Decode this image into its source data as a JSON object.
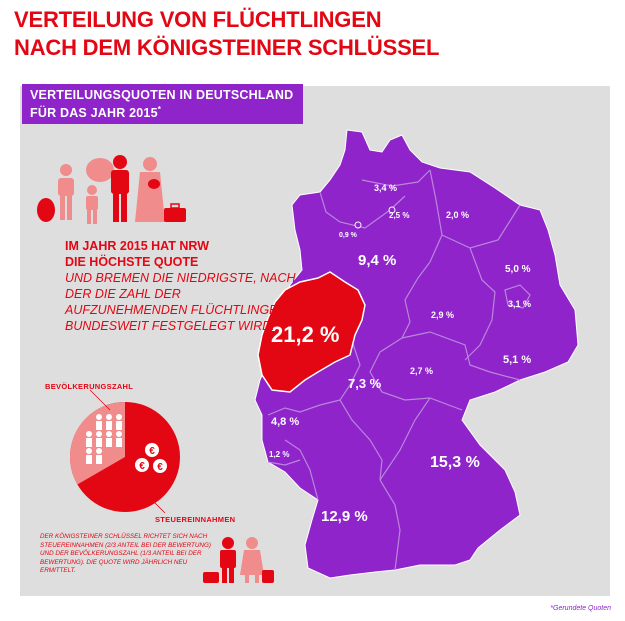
{
  "title": {
    "line1": "VERTEILUNG VON FLÜCHTLINGEN",
    "line2": "NACH DEM KÖNIGSTEINER SCHLÜSSEL"
  },
  "subtitle": {
    "line1": "VERTEILUNGSQUOTEN IN DEUTSCHLAND",
    "line2": "FÜR DAS JAHR 2015",
    "mark": "*"
  },
  "headline": {
    "bold1": "IM JAHR 2015 HAT NRW",
    "bold2": "DIE HÖCHSTE QUOTE",
    "rest": "UND BREMEN DIE NIEDRIGSTE, NACH DER DIE ZAHL DER AUFZUNEHMENDEN FLÜCHTLINGE BUNDESWEIT FESTGELEGT WIRD."
  },
  "pie": {
    "population_label": "BEVÖLKERUNGSZAHL",
    "tax_label": "STEUEREINNAHMEN",
    "population_share": 0.3333,
    "tax_share": 0.6667,
    "currency_symbol": "€"
  },
  "footnote": "DER KÖNIGSTEINER SCHLÜSSEL RICHTET SICH NACH STEUEREINNAHMEN (2/3 ANTEIL BEI DER BEWERTUNG) UND DER BEVÖLKERUNGSZAHL (1/3 ANTEIL BEI DER BEWERTUNG). DIE QUOTE WIRD JÄHRLICH NEU ERMITTELT.",
  "rounded_note": "*Gerundete Quoten",
  "colors": {
    "accent_red": "#e30613",
    "purple": "#8e24c9",
    "panel_gray": "#dedede"
  },
  "states": [
    {
      "id": "schleswig-holstein",
      "value": "3,4 %"
    },
    {
      "id": "hamburg",
      "value": "2,5 %"
    },
    {
      "id": "mecklenburg-vorpommern",
      "value": "2,0 %"
    },
    {
      "id": "bremen",
      "value": "0,9 %"
    },
    {
      "id": "niedersachsen",
      "value": "9,4 %"
    },
    {
      "id": "brandenburg",
      "value": "5,0 %"
    },
    {
      "id": "berlin",
      "value": "3,1 %"
    },
    {
      "id": "nordrhein-westfalen",
      "value": "21,2 %"
    },
    {
      "id": "sachsen-anhalt",
      "value": "2,9 %"
    },
    {
      "id": "sachsen",
      "value": "5,1 %"
    },
    {
      "id": "hessen",
      "value": "7,3 %"
    },
    {
      "id": "thueringen",
      "value": "2,7 %"
    },
    {
      "id": "rheinland-pfalz",
      "value": "4,8 %"
    },
    {
      "id": "saarland",
      "value": "1,2 %"
    },
    {
      "id": "bayern",
      "value": "15,3 %"
    },
    {
      "id": "baden-wuerttemberg",
      "value": "12,9 %"
    }
  ],
  "icons": [
    "family-icon",
    "suitcase-icon",
    "couple-icon",
    "euro-icon",
    "person-icon"
  ]
}
